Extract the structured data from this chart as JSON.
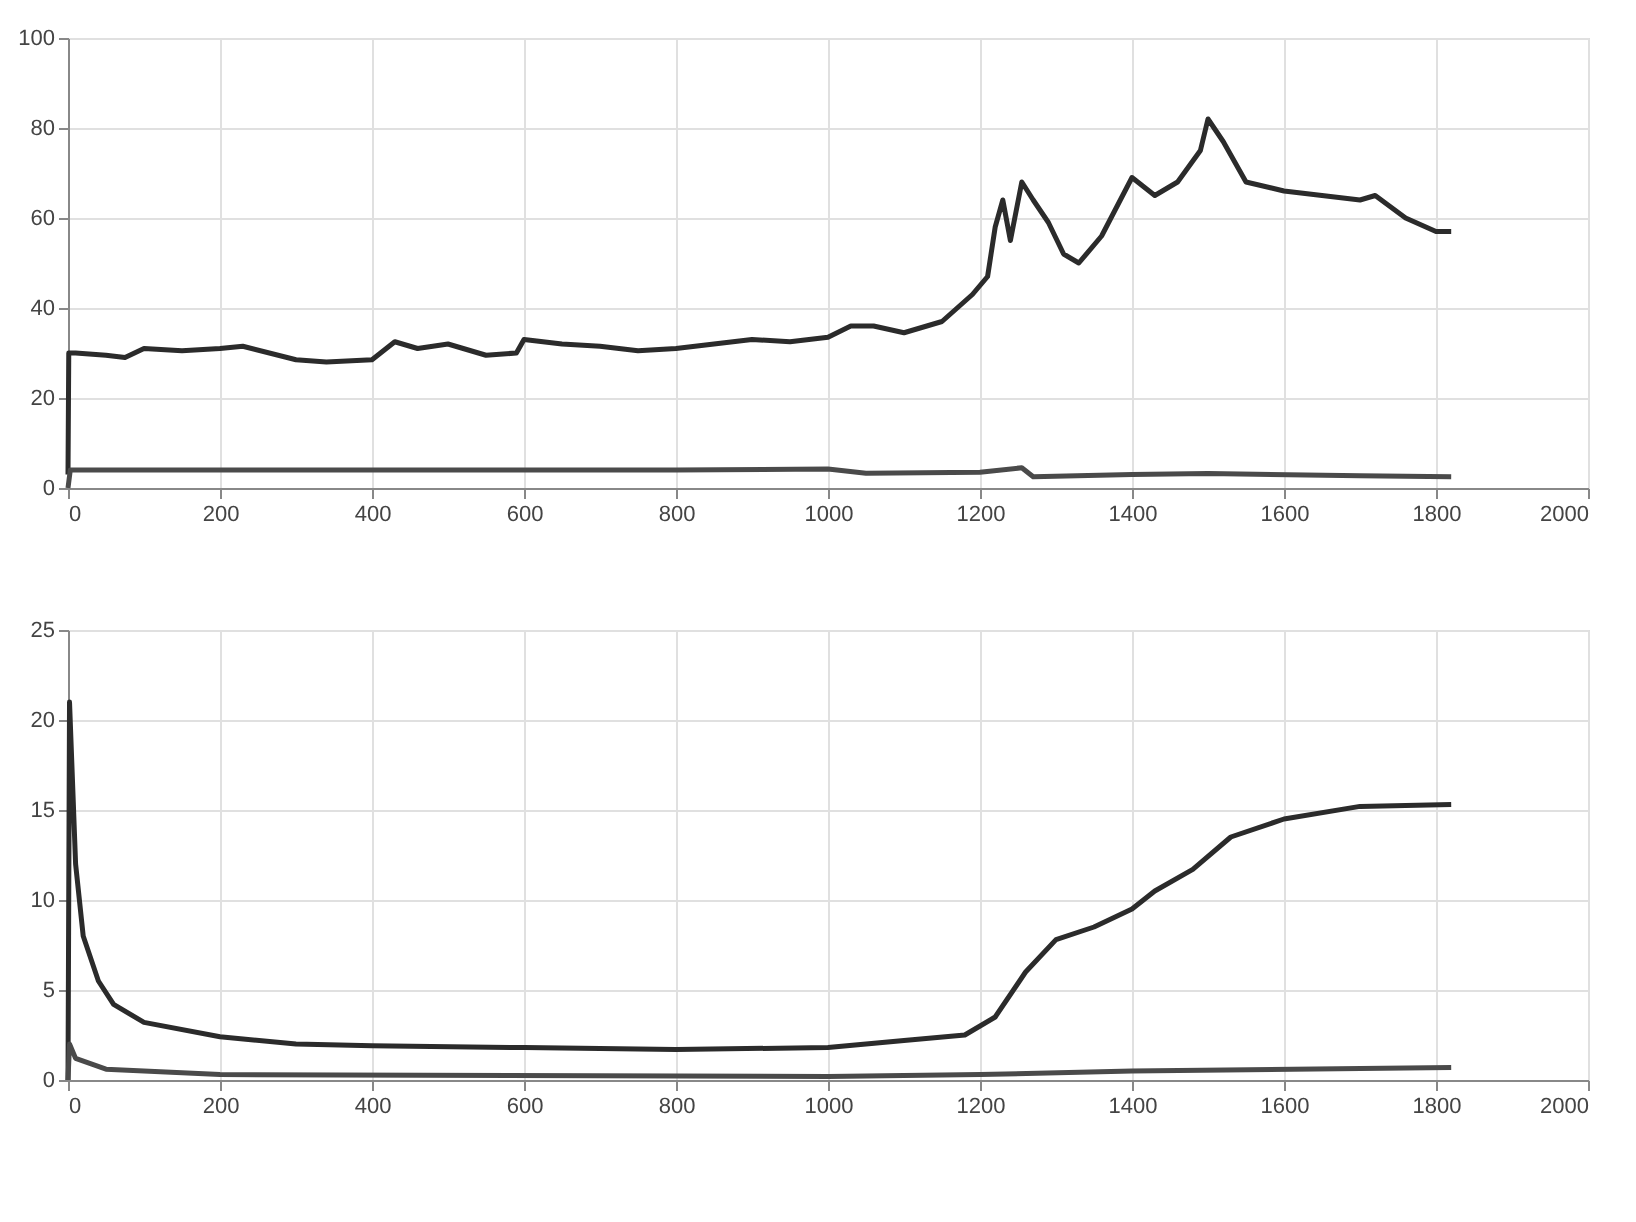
{
  "chart_data": [
    {
      "type": "line",
      "xlim": [
        0,
        2000
      ],
      "xticks": [
        0,
        200,
        400,
        600,
        800,
        1000,
        1200,
        1400,
        1600,
        1800,
        2000
      ],
      "ylim": [
        0,
        100
      ],
      "yticks": [
        0,
        20,
        40,
        60,
        80,
        100
      ],
      "grid": true,
      "line_style": "solid",
      "marker": "none",
      "series": [
        {
          "color": "#2b2b2b",
          "x": [
            0,
            1,
            10,
            50,
            75,
            100,
            150,
            200,
            230,
            300,
            340,
            400,
            430,
            460,
            500,
            550,
            590,
            600,
            650,
            700,
            750,
            800,
            850,
            900,
            950,
            1000,
            1030,
            1060,
            1100,
            1150,
            1190,
            1210,
            1220,
            1230,
            1240,
            1255,
            1270,
            1290,
            1310,
            1330,
            1360,
            1400,
            1430,
            1460,
            1490,
            1500,
            1520,
            1550,
            1600,
            1650,
            1700,
            1720,
            1760,
            1800,
            1820
          ],
          "values": [
            3,
            30,
            30,
            29.5,
            29,
            31,
            30.5,
            31,
            31.5,
            28.5,
            28,
            28.5,
            32.5,
            31,
            32,
            29.5,
            30,
            33,
            32,
            31.5,
            30.5,
            31,
            32,
            33,
            32.5,
            33.5,
            36,
            36,
            34.5,
            37,
            43,
            47,
            58,
            64,
            55,
            68,
            64,
            59,
            52,
            50,
            56,
            69,
            65,
            68,
            75,
            82,
            77,
            68,
            66,
            65,
            64,
            65,
            60,
            57,
            57
          ]
        },
        {
          "color": "#4a4a4a",
          "x": [
            0,
            3,
            200,
            400,
            500,
            800,
            1000,
            1050,
            1200,
            1255,
            1270,
            1400,
            1500,
            1700,
            1820
          ],
          "values": [
            0,
            4,
            4,
            4,
            4,
            4,
            4.2,
            3.3,
            3.5,
            4.5,
            2.5,
            3,
            3.2,
            2.7,
            2.5
          ]
        }
      ]
    },
    {
      "type": "line",
      "xlim": [
        0,
        2000
      ],
      "xticks": [
        0,
        200,
        400,
        600,
        800,
        1000,
        1200,
        1400,
        1600,
        1800,
        2000
      ],
      "ylim": [
        0,
        25
      ],
      "yticks": [
        0,
        5,
        10,
        15,
        20,
        25
      ],
      "grid": true,
      "line_style": "solid",
      "marker": "none",
      "series": [
        {
          "color": "#2b2b2b",
          "x": [
            0,
            2,
            10,
            20,
            40,
            60,
            100,
            200,
            300,
            400,
            600,
            800,
            1000,
            1100,
            1180,
            1220,
            1260,
            1300,
            1350,
            1400,
            1430,
            1480,
            1530,
            1600,
            1700,
            1820
          ],
          "values": [
            0,
            21,
            12,
            8,
            5.5,
            4.2,
            3.2,
            2.4,
            2.0,
            1.9,
            1.8,
            1.7,
            1.8,
            2.2,
            2.5,
            3.5,
            6,
            7.8,
            8.5,
            9.5,
            10.5,
            11.7,
            13.5,
            14.5,
            15.2,
            15.3
          ]
        },
        {
          "color": "#4a4a4a",
          "x": [
            0,
            2,
            10,
            50,
            200,
            1000,
            1200,
            1400,
            1820
          ],
          "values": [
            0,
            2,
            1.2,
            0.6,
            0.3,
            0.2,
            0.3,
            0.5,
            0.7
          ]
        }
      ]
    }
  ]
}
